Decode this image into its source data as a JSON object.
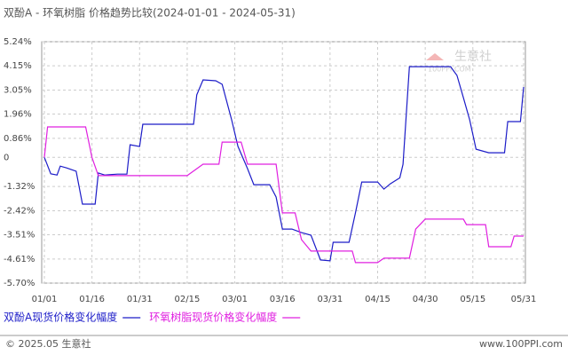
{
  "chart_data": {
    "type": "line",
    "title": "双酚A - 环氧树脂 价格趋势比较(2024-01-01 - 2024-05-31)",
    "ylim": [
      -5.7,
      5.24
    ],
    "yticks": [
      {
        "value": 5.24,
        "label": "5.24%"
      },
      {
        "value": 4.15,
        "label": "4.15%"
      },
      {
        "value": 3.05,
        "label": "3.05%"
      },
      {
        "value": 1.96,
        "label": "1.96%"
      },
      {
        "value": 0.86,
        "label": "0.86%"
      },
      0,
      {
        "value": -1.32,
        "label": "-1.32%"
      },
      {
        "value": -2.42,
        "label": "-2.42%"
      },
      {
        "value": -3.51,
        "label": "-3.51%"
      },
      {
        "value": -4.61,
        "label": "-4.61%"
      },
      {
        "value": -5.7,
        "label": "-5.70%"
      }
    ],
    "xlim": [
      "01/01",
      "05/31"
    ],
    "xticks": [
      "01/01",
      "01/16",
      "01/31",
      "02/15",
      "03/01",
      "03/16",
      "03/31",
      "04/15",
      "04/30",
      "05/15",
      "05/31"
    ],
    "grid": true,
    "series": [
      {
        "name": "双酚A现货价格变化幅度",
        "color": "#1c1cc8",
        "x": [
          "01/01",
          "01/03",
          "01/05",
          "01/06",
          "01/08",
          "01/11",
          "01/13",
          "01/17",
          "01/18",
          "01/20",
          "01/24",
          "01/27",
          "01/28",
          "01/31",
          "02/01",
          "02/06",
          "02/15",
          "02/17",
          "02/18",
          "02/20",
          "02/24",
          "02/26",
          "02/29",
          "03/02",
          "03/05",
          "03/07",
          "03/12",
          "03/14",
          "03/16",
          "03/19",
          "03/22",
          "03/25",
          "03/28",
          "03/31",
          "04/01",
          "04/06",
          "04/08",
          "04/10",
          "04/15",
          "04/17",
          "04/19",
          "04/22",
          "04/23",
          "04/25",
          "04/30",
          "05/08",
          "05/10",
          "05/12",
          "05/14",
          "05/16",
          "05/20",
          "05/25",
          "05/26",
          "05/30",
          "05/31"
        ],
        "values": [
          0,
          -0.75,
          -0.8,
          -0.4,
          -0.48,
          -0.63,
          -2.12,
          -2.12,
          -0.71,
          -0.8,
          -0.76,
          -0.76,
          0.57,
          0.49,
          1.5,
          1.5,
          1.5,
          1.5,
          2.83,
          3.51,
          3.47,
          3.31,
          1.7,
          0.5,
          -0.51,
          -1.24,
          -1.24,
          -1.8,
          -3.25,
          -3.25,
          -3.41,
          -3.53,
          -4.65,
          -4.69,
          -3.85,
          -3.85,
          -2.52,
          -1.12,
          -1.12,
          -1.44,
          -1.2,
          -0.93,
          -0.32,
          4.11,
          4.11,
          4.11,
          3.71,
          2.71,
          1.7,
          0.37,
          0.21,
          0.21,
          1.62,
          1.62,
          3.19
        ]
      },
      {
        "name": "环氧树脂现货价格变化幅度",
        "color": "#e020e0",
        "x": [
          "01/01",
          "01/02",
          "01/14",
          "01/16",
          "01/18",
          "01/31",
          "02/15",
          "02/20",
          "02/25",
          "02/26",
          "03/03",
          "03/05",
          "03/14",
          "03/16",
          "03/20",
          "03/22",
          "03/25",
          "03/31",
          "04/07",
          "04/08",
          "04/15",
          "04/17",
          "04/25",
          "04/27",
          "04/30",
          "05/12",
          "05/13",
          "05/19",
          "05/20",
          "05/27",
          "05/28",
          "05/31"
        ],
        "values": [
          0,
          1.38,
          1.38,
          0,
          -0.83,
          -0.83,
          -0.83,
          -0.31,
          -0.31,
          0.69,
          0.69,
          -0.31,
          -0.31,
          -2.52,
          -2.52,
          -3.73,
          -4.25,
          -4.25,
          -4.25,
          -4.77,
          -4.77,
          -4.57,
          -4.57,
          -3.25,
          -2.8,
          -2.8,
          -3.05,
          -3.05,
          -4.05,
          -4.05,
          -3.57,
          -3.57
        ]
      }
    ],
    "watermark": {
      "name": "生意社",
      "site": "100PPI.COM"
    },
    "footer": {
      "left": "© 2025.05 生意社",
      "right": "www.100PPI.com"
    }
  }
}
